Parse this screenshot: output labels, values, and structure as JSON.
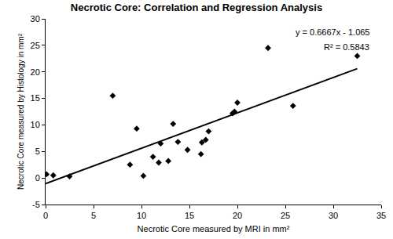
{
  "chart_data": {
    "type": "scatter",
    "title": "Necrotic Core: Correlation and Regression Analysis",
    "x_label": "Necrotic Core measured by MRI in mm²",
    "y_label": "Necrotic Core measured by Histology in mm²",
    "xlim": [
      0,
      35
    ],
    "xticks": [
      0,
      5,
      10,
      15,
      20,
      25,
      30,
      35
    ],
    "ylim": [
      -5,
      30
    ],
    "yticks": [
      -5,
      0,
      5,
      10,
      15,
      20,
      25,
      30
    ],
    "grid": false,
    "annotations": [
      "y = 0.6667x - 1.065",
      "R² = 0.5843"
    ],
    "series": [
      {
        "type": "scatter",
        "marker": "diamond",
        "color": "#000000",
        "x": [
          0.1,
          0.8,
          2.5,
          7,
          8.8,
          9.5,
          10.2,
          11.2,
          11.8,
          12,
          12.8,
          13.3,
          13.8,
          14.8,
          16.2,
          16.3,
          16.7,
          17,
          19.5,
          19.7,
          20,
          23.2,
          25.8,
          32.5
        ],
        "values": [
          0.7,
          0.5,
          0.3,
          15.5,
          2.5,
          9.3,
          0.4,
          4,
          2.9,
          6.5,
          3.2,
          10.2,
          6.8,
          5.3,
          4.5,
          6.7,
          7.2,
          8.8,
          12.2,
          12.5,
          14.2,
          24.5,
          13.6,
          23
        ]
      },
      {
        "type": "line",
        "line_style": "solid",
        "color": "#000000",
        "x": [
          0,
          32.5
        ],
        "values": [
          -1.065,
          20.6
        ]
      }
    ]
  }
}
